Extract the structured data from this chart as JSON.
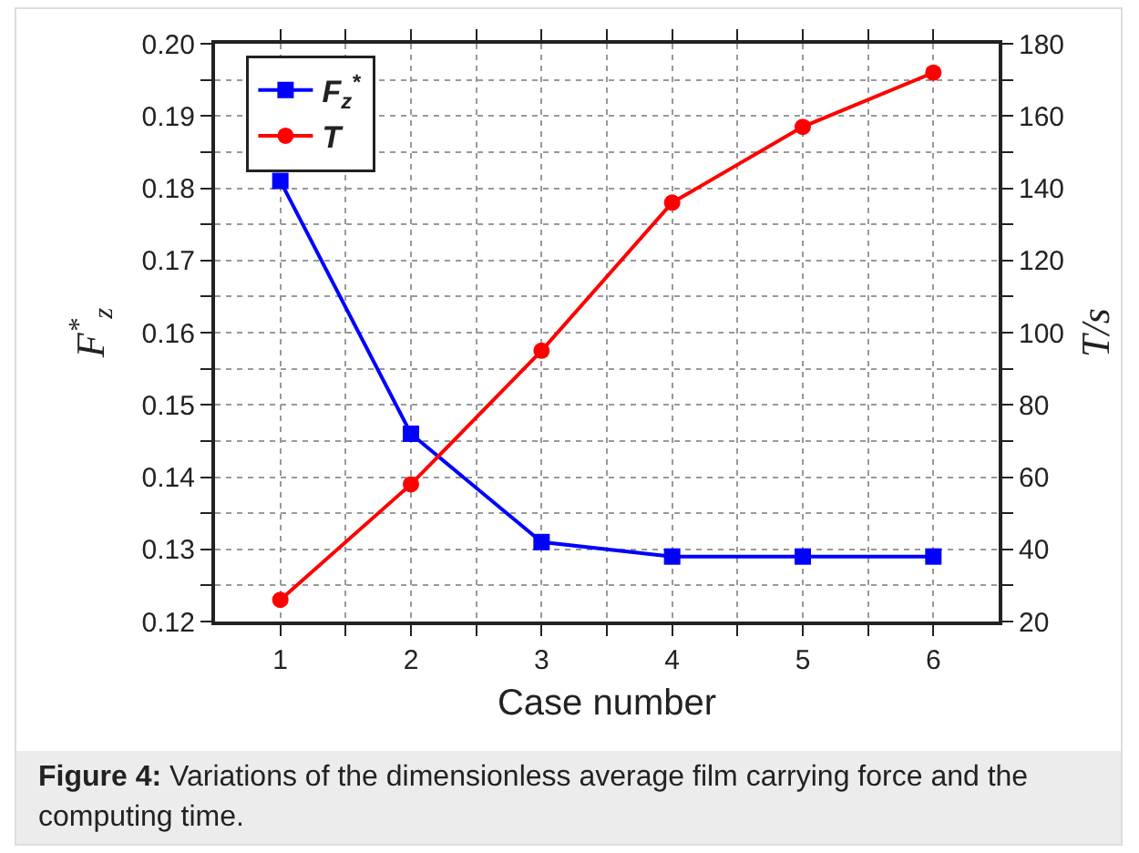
{
  "chart_data": {
    "type": "line",
    "xlabel": "Case number",
    "ylabel": "F$^{*}$$_{z}$",
    "y2label": "T/s",
    "x": [
      1,
      2,
      3,
      4,
      5,
      6
    ],
    "series": [
      {
        "name": "F$_{z}$$^{*}$",
        "color": "#0000ff",
        "marker": "square",
        "values": [
          0.181,
          0.146,
          0.131,
          0.129,
          0.129,
          0.129
        ]
      },
      {
        "name": "T",
        "color": "#ff0000",
        "marker": "circle",
        "axis": "y2",
        "values": [
          26,
          58,
          95,
          136,
          157,
          172
        ]
      }
    ],
    "xlim": [
      0.5,
      6.5
    ],
    "xticks": [
      1,
      {
        "value": 1.5,
        "label": null
      },
      2,
      {
        "value": 2.5,
        "label": null
      },
      3,
      {
        "value": 3.5,
        "label": null
      },
      4,
      {
        "value": 4.5,
        "label": null
      },
      5,
      {
        "value": 5.5,
        "label": null
      },
      6
    ],
    "ylim": [
      0.12,
      0.2
    ],
    "yticks": [
      0.12,
      {
        "value": 0.125,
        "label": null
      },
      0.13,
      {
        "value": 0.135,
        "label": null
      },
      0.14,
      {
        "value": 0.145,
        "label": null
      },
      0.15,
      {
        "value": 0.155,
        "label": null
      },
      0.16,
      {
        "value": 0.165,
        "label": null
      },
      0.17,
      {
        "value": 0.175,
        "label": null
      },
      0.18,
      {
        "value": 0.185,
        "label": null
      },
      0.19,
      {
        "value": 0.195,
        "label": null
      },
      {
        "value": 0.2,
        "label": "0.20"
      }
    ],
    "y2lim": [
      20,
      180
    ],
    "y2ticks": [
      20,
      {
        "value": 30,
        "label": null
      },
      40,
      {
        "value": 50,
        "label": null
      },
      60,
      {
        "value": 70,
        "label": null
      },
      80,
      {
        "value": 90,
        "label": null
      },
      100,
      {
        "value": 110,
        "label": null
      },
      120,
      {
        "value": 130,
        "label": null
      },
      140,
      {
        "value": 150,
        "label": null
      },
      160,
      {
        "value": 170,
        "label": null
      },
      180
    ],
    "grid": true,
    "legend": "top left",
    "line_style": "solid",
    "annotations": [
      "Figure 4:",
      "Variations of the dimensionless average film carrying force and the computing time."
    ]
  }
}
